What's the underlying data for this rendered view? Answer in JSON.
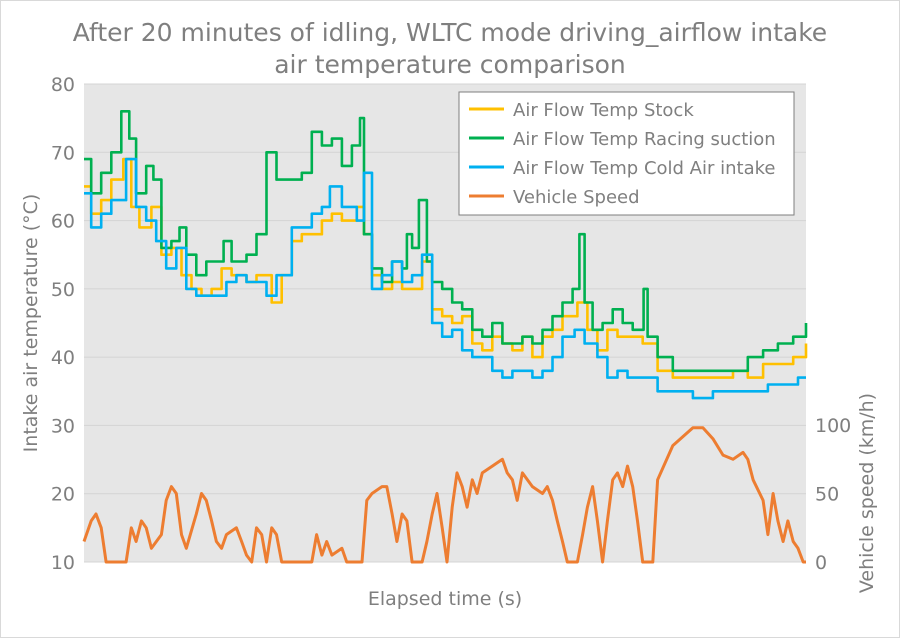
{
  "chart_data": {
    "type": "line",
    "title": "After 20 minutes of idling, WLTC mode driving_airflow intake air temperature comparison",
    "title_lines": [
      "After 20 minutes of idling, WLTC mode driving_airflow intake",
      "air temperature comparison"
    ],
    "xlabel": "Elapsed time (s)",
    "ylabel": "Intake air temperature (°C)",
    "y2label": "Vehicle speed (km/h)",
    "xlim": [
      0,
      1800
    ],
    "ylim": [
      10,
      80
    ],
    "y2lim": [
      0,
      255
    ],
    "yticks": [
      "10",
      "20",
      "30",
      "40",
      "50",
      "60",
      "70",
      "80"
    ],
    "y2ticks": [
      "0",
      "50",
      "100"
    ],
    "grid": true,
    "legend_position": "top-right",
    "series": [
      {
        "name": "Air Flow Temp Stock",
        "color": "#ffc000",
        "axis": "left",
        "step": true,
        "points": [
          [
            0,
            65
          ],
          [
            18,
            61
          ],
          [
            43,
            63
          ],
          [
            68,
            66
          ],
          [
            98,
            69
          ],
          [
            118,
            62
          ],
          [
            138,
            59
          ],
          [
            168,
            62
          ],
          [
            193,
            55
          ],
          [
            218,
            56
          ],
          [
            243,
            52
          ],
          [
            268,
            50
          ],
          [
            293,
            49
          ],
          [
            318,
            50
          ],
          [
            343,
            53
          ],
          [
            368,
            52
          ],
          [
            405,
            51
          ],
          [
            430,
            52
          ],
          [
            468,
            48
          ],
          [
            493,
            52
          ],
          [
            518,
            57
          ],
          [
            543,
            58
          ],
          [
            568,
            58
          ],
          [
            593,
            60
          ],
          [
            618,
            61
          ],
          [
            643,
            60
          ],
          [
            680,
            62
          ],
          [
            698,
            58
          ],
          [
            718,
            52
          ],
          [
            743,
            50
          ],
          [
            768,
            51
          ],
          [
            793,
            50
          ],
          [
            818,
            50
          ],
          [
            843,
            54
          ],
          [
            868,
            47
          ],
          [
            893,
            46
          ],
          [
            918,
            45
          ],
          [
            943,
            46
          ],
          [
            968,
            42
          ],
          [
            993,
            41
          ],
          [
            1018,
            43
          ],
          [
            1043,
            42
          ],
          [
            1068,
            41
          ],
          [
            1093,
            43
          ],
          [
            1118,
            40
          ],
          [
            1143,
            43
          ],
          [
            1168,
            44
          ],
          [
            1193,
            46
          ],
          [
            1230,
            48
          ],
          [
            1255,
            44
          ],
          [
            1280,
            41
          ],
          [
            1305,
            44
          ],
          [
            1330,
            43
          ],
          [
            1368,
            43
          ],
          [
            1393,
            42
          ],
          [
            1430,
            38
          ],
          [
            1468,
            37
          ],
          [
            1518,
            37
          ],
          [
            1568,
            37
          ],
          [
            1618,
            38
          ],
          [
            1655,
            37
          ],
          [
            1693,
            39
          ],
          [
            1730,
            39
          ],
          [
            1768,
            40
          ],
          [
            1800,
            42
          ]
        ]
      },
      {
        "name": "Air Flow Temp Racing suction",
        "color": "#00b050",
        "axis": "left",
        "step": true,
        "points": [
          [
            0,
            69
          ],
          [
            18,
            64
          ],
          [
            43,
            67
          ],
          [
            68,
            70
          ],
          [
            93,
            76
          ],
          [
            113,
            72
          ],
          [
            130,
            64
          ],
          [
            155,
            68
          ],
          [
            173,
            66
          ],
          [
            193,
            56
          ],
          [
            218,
            57
          ],
          [
            238,
            59
          ],
          [
            255,
            55
          ],
          [
            280,
            52
          ],
          [
            305,
            54
          ],
          [
            330,
            54
          ],
          [
            348,
            57
          ],
          [
            368,
            54
          ],
          [
            405,
            55
          ],
          [
            430,
            58
          ],
          [
            455,
            70
          ],
          [
            480,
            66
          ],
          [
            518,
            66
          ],
          [
            543,
            67
          ],
          [
            568,
            73
          ],
          [
            593,
            71
          ],
          [
            618,
            72
          ],
          [
            643,
            68
          ],
          [
            668,
            71
          ],
          [
            688,
            75
          ],
          [
            698,
            58
          ],
          [
            718,
            53
          ],
          [
            743,
            51
          ],
          [
            768,
            54
          ],
          [
            793,
            53
          ],
          [
            805,
            58
          ],
          [
            818,
            56
          ],
          [
            835,
            63
          ],
          [
            855,
            54
          ],
          [
            868,
            51
          ],
          [
            893,
            50
          ],
          [
            918,
            48
          ],
          [
            943,
            47
          ],
          [
            968,
            44
          ],
          [
            993,
            43
          ],
          [
            1018,
            45
          ],
          [
            1043,
            42
          ],
          [
            1068,
            42
          ],
          [
            1093,
            43
          ],
          [
            1118,
            42
          ],
          [
            1143,
            44
          ],
          [
            1168,
            46
          ],
          [
            1193,
            48
          ],
          [
            1218,
            50
          ],
          [
            1235,
            58
          ],
          [
            1248,
            48
          ],
          [
            1268,
            44
          ],
          [
            1293,
            45
          ],
          [
            1318,
            47
          ],
          [
            1343,
            45
          ],
          [
            1368,
            44
          ],
          [
            1395,
            50
          ],
          [
            1405,
            43
          ],
          [
            1430,
            40
          ],
          [
            1468,
            38
          ],
          [
            1518,
            38
          ],
          [
            1568,
            38
          ],
          [
            1618,
            38
          ],
          [
            1655,
            40
          ],
          [
            1693,
            41
          ],
          [
            1730,
            42
          ],
          [
            1768,
            43
          ],
          [
            1800,
            45
          ]
        ]
      },
      {
        "name": "Air Flow Temp Cold Air intake",
        "color": "#00b0f0",
        "axis": "left",
        "step": true,
        "points": [
          [
            0,
            64
          ],
          [
            18,
            59
          ],
          [
            43,
            61
          ],
          [
            68,
            63
          ],
          [
            105,
            69
          ],
          [
            130,
            62
          ],
          [
            155,
            60
          ],
          [
            180,
            57
          ],
          [
            205,
            53
          ],
          [
            230,
            56
          ],
          [
            255,
            50
          ],
          [
            280,
            49
          ],
          [
            305,
            49
          ],
          [
            330,
            49
          ],
          [
            355,
            51
          ],
          [
            380,
            52
          ],
          [
            405,
            51
          ],
          [
            455,
            49
          ],
          [
            480,
            52
          ],
          [
            518,
            59
          ],
          [
            543,
            59
          ],
          [
            568,
            61
          ],
          [
            593,
            62
          ],
          [
            613,
            65
          ],
          [
            643,
            62
          ],
          [
            680,
            60
          ],
          [
            698,
            67
          ],
          [
            718,
            50
          ],
          [
            743,
            52
          ],
          [
            768,
            54
          ],
          [
            793,
            51
          ],
          [
            818,
            52
          ],
          [
            843,
            55
          ],
          [
            868,
            45
          ],
          [
            893,
            43
          ],
          [
            918,
            44
          ],
          [
            943,
            41
          ],
          [
            968,
            40
          ],
          [
            993,
            40
          ],
          [
            1018,
            38
          ],
          [
            1043,
            37
          ],
          [
            1068,
            38
          ],
          [
            1093,
            38
          ],
          [
            1118,
            37
          ],
          [
            1143,
            38
          ],
          [
            1168,
            40
          ],
          [
            1193,
            43
          ],
          [
            1223,
            44
          ],
          [
            1248,
            42
          ],
          [
            1280,
            40
          ],
          [
            1305,
            37
          ],
          [
            1330,
            38
          ],
          [
            1355,
            37
          ],
          [
            1393,
            37
          ],
          [
            1430,
            35
          ],
          [
            1468,
            35
          ],
          [
            1518,
            34
          ],
          [
            1568,
            35
          ],
          [
            1618,
            35
          ],
          [
            1668,
            35
          ],
          [
            1705,
            36
          ],
          [
            1743,
            36
          ],
          [
            1780,
            37
          ],
          [
            1800,
            37
          ]
        ]
      },
      {
        "name": "Vehicle Speed",
        "color": "#ed7d31",
        "axis": "right",
        "step": false,
        "points": [
          [
            0,
            15
          ],
          [
            18,
            30
          ],
          [
            30,
            35
          ],
          [
            43,
            25
          ],
          [
            55,
            0
          ],
          [
            93,
            0
          ],
          [
            105,
            0
          ],
          [
            118,
            25
          ],
          [
            130,
            15
          ],
          [
            143,
            30
          ],
          [
            155,
            25
          ],
          [
            168,
            10
          ],
          [
            193,
            20
          ],
          [
            205,
            45
          ],
          [
            218,
            55
          ],
          [
            230,
            50
          ],
          [
            243,
            20
          ],
          [
            255,
            10
          ],
          [
            280,
            35
          ],
          [
            293,
            50
          ],
          [
            305,
            45
          ],
          [
            318,
            30
          ],
          [
            330,
            15
          ],
          [
            343,
            10
          ],
          [
            355,
            20
          ],
          [
            380,
            25
          ],
          [
            393,
            15
          ],
          [
            405,
            5
          ],
          [
            418,
            0
          ],
          [
            430,
            25
          ],
          [
            443,
            20
          ],
          [
            455,
            0
          ],
          [
            468,
            25
          ],
          [
            480,
            20
          ],
          [
            493,
            0
          ],
          [
            568,
            0
          ],
          [
            580,
            20
          ],
          [
            593,
            5
          ],
          [
            605,
            15
          ],
          [
            618,
            5
          ],
          [
            643,
            10
          ],
          [
            655,
            0
          ],
          [
            693,
            0
          ],
          [
            705,
            45
          ],
          [
            718,
            50
          ],
          [
            743,
            55
          ],
          [
            755,
            55
          ],
          [
            768,
            35
          ],
          [
            780,
            15
          ],
          [
            793,
            35
          ],
          [
            805,
            30
          ],
          [
            818,
            0
          ],
          [
            843,
            0
          ],
          [
            855,
            15
          ],
          [
            868,
            35
          ],
          [
            880,
            50
          ],
          [
            893,
            25
          ],
          [
            905,
            0
          ],
          [
            918,
            40
          ],
          [
            930,
            65
          ],
          [
            943,
            55
          ],
          [
            955,
            40
          ],
          [
            968,
            60
          ],
          [
            980,
            50
          ],
          [
            993,
            65
          ],
          [
            1018,
            70
          ],
          [
            1043,
            75
          ],
          [
            1055,
            65
          ],
          [
            1068,
            60
          ],
          [
            1080,
            45
          ],
          [
            1093,
            65
          ],
          [
            1118,
            55
          ],
          [
            1143,
            50
          ],
          [
            1155,
            55
          ],
          [
            1168,
            45
          ],
          [
            1180,
            30
          ],
          [
            1193,
            15
          ],
          [
            1205,
            0
          ],
          [
            1230,
            0
          ],
          [
            1243,
            20
          ],
          [
            1255,
            40
          ],
          [
            1268,
            55
          ],
          [
            1280,
            30
          ],
          [
            1293,
            0
          ],
          [
            1305,
            30
          ],
          [
            1318,
            60
          ],
          [
            1330,
            65
          ],
          [
            1343,
            55
          ],
          [
            1355,
            70
          ],
          [
            1368,
            55
          ],
          [
            1380,
            30
          ],
          [
            1393,
            0
          ],
          [
            1418,
            0
          ],
          [
            1430,
            60
          ],
          [
            1468,
            85
          ],
          [
            1518,
            98
          ],
          [
            1543,
            98
          ],
          [
            1568,
            90
          ],
          [
            1593,
            78
          ],
          [
            1618,
            75
          ],
          [
            1643,
            80
          ],
          [
            1655,
            75
          ],
          [
            1668,
            60
          ],
          [
            1693,
            45
          ],
          [
            1705,
            20
          ],
          [
            1718,
            50
          ],
          [
            1730,
            30
          ],
          [
            1743,
            15
          ],
          [
            1755,
            30
          ],
          [
            1768,
            15
          ],
          [
            1780,
            10
          ],
          [
            1793,
            0
          ],
          [
            1800,
            0
          ]
        ]
      }
    ]
  }
}
